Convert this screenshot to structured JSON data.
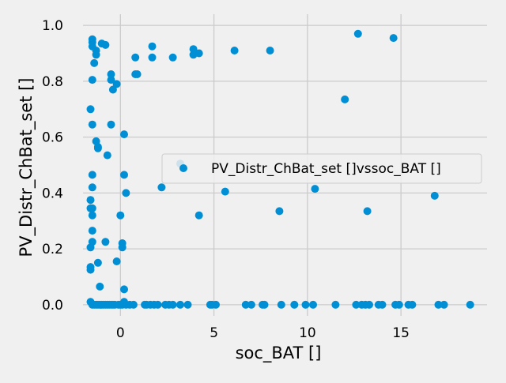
{
  "chart_data": {
    "type": "scatter",
    "xlabel": "soc_BAT []",
    "ylabel": "PV_Distr_ChBat_set []",
    "xlim": [
      -2.0,
      19.6
    ],
    "ylim": [
      -0.04,
      1.04
    ],
    "x_ticks": [
      "0",
      "5",
      "10",
      "15"
    ],
    "y_ticks": [
      "0.0",
      "0.2",
      "0.4",
      "0.6",
      "0.8",
      "1.0"
    ],
    "grid": true,
    "legend_position": "center-right",
    "series": [
      {
        "name": "PV_Distr_ChBat_set []vssoc_BAT []",
        "color": "#008fd5",
        "points": [
          [
            -1.6,
            0.7
          ],
          [
            -1.5,
            0.95
          ],
          [
            -1.5,
            0.94
          ],
          [
            -1.5,
            0.925
          ],
          [
            -1.4,
            0.865
          ],
          [
            -1.3,
            0.91
          ],
          [
            -1.3,
            0.895
          ],
          [
            -1.0,
            0.935
          ],
          [
            -0.8,
            0.93
          ],
          [
            -0.5,
            0.825
          ],
          [
            -0.5,
            0.805
          ],
          [
            -0.4,
            0.77
          ],
          [
            -0.2,
            0.79
          ],
          [
            -1.5,
            0.805
          ],
          [
            -1.5,
            0.645
          ],
          [
            -1.3,
            0.585
          ],
          [
            -1.2,
            0.565
          ],
          [
            -1.2,
            0.56
          ],
          [
            -0.7,
            0.535
          ],
          [
            -0.5,
            0.645
          ],
          [
            0.2,
            0.61
          ],
          [
            0.8,
            0.885
          ],
          [
            0.8,
            0.825
          ],
          [
            0.9,
            0.825
          ],
          [
            1.7,
            0.925
          ],
          [
            1.7,
            0.885
          ],
          [
            2.8,
            0.885
          ],
          [
            3.9,
            0.895
          ],
          [
            3.9,
            0.915
          ],
          [
            4.2,
            0.9
          ],
          [
            6.1,
            0.91
          ],
          [
            8.0,
            0.91
          ],
          [
            12.7,
            0.97
          ],
          [
            14.6,
            0.955
          ],
          [
            12.0,
            0.735
          ],
          [
            3.2,
            0.505
          ],
          [
            2.2,
            0.42
          ],
          [
            4.2,
            0.32
          ],
          [
            5.6,
            0.405
          ],
          [
            8.5,
            0.335
          ],
          [
            10.4,
            0.415
          ],
          [
            13.2,
            0.335
          ],
          [
            16.8,
            0.39
          ],
          [
            -1.5,
            0.465
          ],
          [
            -1.5,
            0.42
          ],
          [
            -1.6,
            0.375
          ],
          [
            -1.6,
            0.345
          ],
          [
            -1.5,
            0.345
          ],
          [
            -1.5,
            0.32
          ],
          [
            -1.5,
            0.265
          ],
          [
            -1.5,
            0.225
          ],
          [
            -1.6,
            0.205
          ],
          [
            -1.6,
            0.135
          ],
          [
            -1.6,
            0.125
          ],
          [
            -1.2,
            0.15
          ],
          [
            -1.1,
            0.065
          ],
          [
            -0.8,
            0.225
          ],
          [
            -0.2,
            0.155
          ],
          [
            0.0,
            0.32
          ],
          [
            0.1,
            0.22
          ],
          [
            0.1,
            0.205
          ],
          [
            0.2,
            0.465
          ],
          [
            0.3,
            0.4
          ],
          [
            0.2,
            0.055
          ],
          [
            0.2,
            0.01
          ],
          [
            -1.6,
            0.01
          ],
          [
            -1.5,
            0.0
          ],
          [
            -1.4,
            0.0
          ],
          [
            -1.3,
            0.0
          ],
          [
            -1.2,
            0.0
          ],
          [
            -1.1,
            0.0
          ],
          [
            -1.0,
            0.0
          ],
          [
            -0.9,
            0.0
          ],
          [
            -0.8,
            0.0
          ],
          [
            -0.7,
            0.0
          ],
          [
            -0.6,
            0.0
          ],
          [
            -0.5,
            0.0
          ],
          [
            -0.4,
            0.0
          ],
          [
            -0.3,
            0.0
          ],
          [
            -0.1,
            0.0
          ],
          [
            0.0,
            0.0
          ],
          [
            0.1,
            0.0
          ],
          [
            0.3,
            0.0
          ],
          [
            0.5,
            0.0
          ],
          [
            0.7,
            0.0
          ],
          [
            1.3,
            0.0
          ],
          [
            1.4,
            0.0
          ],
          [
            1.6,
            0.0
          ],
          [
            1.8,
            0.0
          ],
          [
            2.0,
            0.0
          ],
          [
            2.4,
            0.0
          ],
          [
            2.6,
            0.0
          ],
          [
            2.8,
            0.0
          ],
          [
            3.2,
            0.0
          ],
          [
            3.6,
            0.0
          ],
          [
            4.8,
            0.0
          ],
          [
            4.9,
            0.0
          ],
          [
            5.1,
            0.0
          ],
          [
            6.7,
            0.0
          ],
          [
            7.0,
            0.0
          ],
          [
            7.6,
            0.0
          ],
          [
            7.7,
            0.0
          ],
          [
            8.6,
            0.0
          ],
          [
            9.3,
            0.0
          ],
          [
            9.9,
            0.0
          ],
          [
            10.3,
            0.0
          ],
          [
            11.5,
            0.0
          ],
          [
            12.6,
            0.0
          ],
          [
            12.9,
            0.0
          ],
          [
            13.1,
            0.0
          ],
          [
            13.3,
            0.0
          ],
          [
            13.8,
            0.0
          ],
          [
            14.0,
            0.0
          ],
          [
            14.7,
            0.0
          ],
          [
            14.9,
            0.0
          ],
          [
            15.4,
            0.0
          ],
          [
            15.6,
            0.0
          ],
          [
            17.0,
            0.0
          ],
          [
            17.3,
            0.0
          ],
          [
            18.7,
            0.0
          ]
        ]
      }
    ]
  }
}
